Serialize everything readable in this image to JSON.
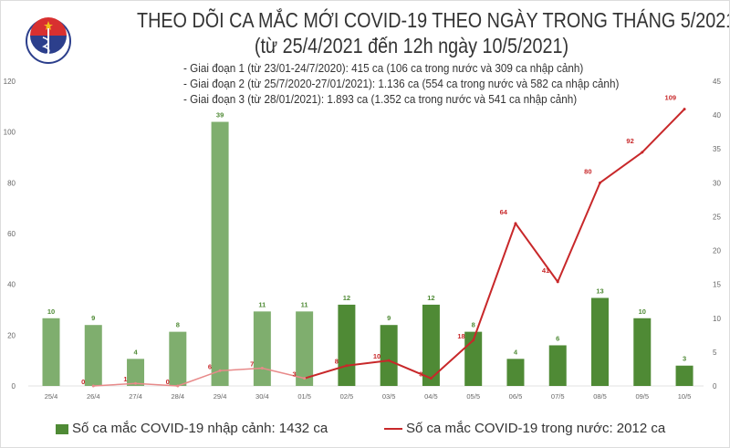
{
  "header": {
    "title": "THEO DÕI CA MẮC MỚI COVID-19 THEO NGÀY TRONG THÁNG 5/2021",
    "subtitle": "(từ 25/4/2021 đến 12h ngày 10/5/2021)",
    "phases": [
      "- Giai đoạn 1 (từ 23/01-24/7/2020): 415 ca (106 ca trong nước và 309 ca nhập cảnh)",
      "- Giai đoạn 2 (từ 25/7/2020-27/01/2021): 1.136 ca (554 ca trong nước và 582 ca nhập cảnh)",
      "- Giai đoạn 3 (từ 28/01/2021): 1.893 ca (1.352 ca trong nước và 541 ca nhập cảnh)"
    ],
    "logo_text": "BỘ Y TẾ · MINISTRY OF HEALTH"
  },
  "chart_data": {
    "type": "bar+line",
    "categories": [
      "25/4",
      "26/4",
      "27/4",
      "28/4",
      "29/4",
      "30/4",
      "01/5",
      "02/5",
      "03/5",
      "04/5",
      "05/5",
      "06/5",
      "07/5",
      "08/5",
      "09/5",
      "10/5"
    ],
    "left_axis": {
      "ylim": [
        0,
        120
      ],
      "ticks": [
        "0",
        "20",
        "40",
        "60",
        "80",
        "100",
        "120"
      ]
    },
    "right_axis": {
      "ylim": [
        0,
        45
      ],
      "ticks": [
        "0",
        "5",
        "10",
        "15",
        "20",
        "25",
        "30",
        "35",
        "40",
        "45"
      ]
    },
    "series": [
      {
        "name": "Số ca mắc COVID-19 nhập cảnh: 1432 ca",
        "kind": "bar",
        "axis": "right",
        "values": [
          10,
          9,
          4,
          8,
          39,
          11,
          11,
          12,
          9,
          12,
          8,
          4,
          6,
          13,
          10,
          3
        ],
        "color_early": "#7fae6e",
        "color": "#4f8a35"
      },
      {
        "name": "Số ca mắc COVID-19 trong nước: 2012 ca",
        "kind": "line",
        "axis": "left",
        "values": [
          null,
          0,
          1,
          0,
          6,
          7,
          3,
          8,
          10,
          3,
          18,
          64,
          41,
          80,
          92,
          109
        ],
        "color_early": "#e88a8a",
        "color": "#c8282a"
      }
    ],
    "legend": "bottom",
    "grid": false
  }
}
